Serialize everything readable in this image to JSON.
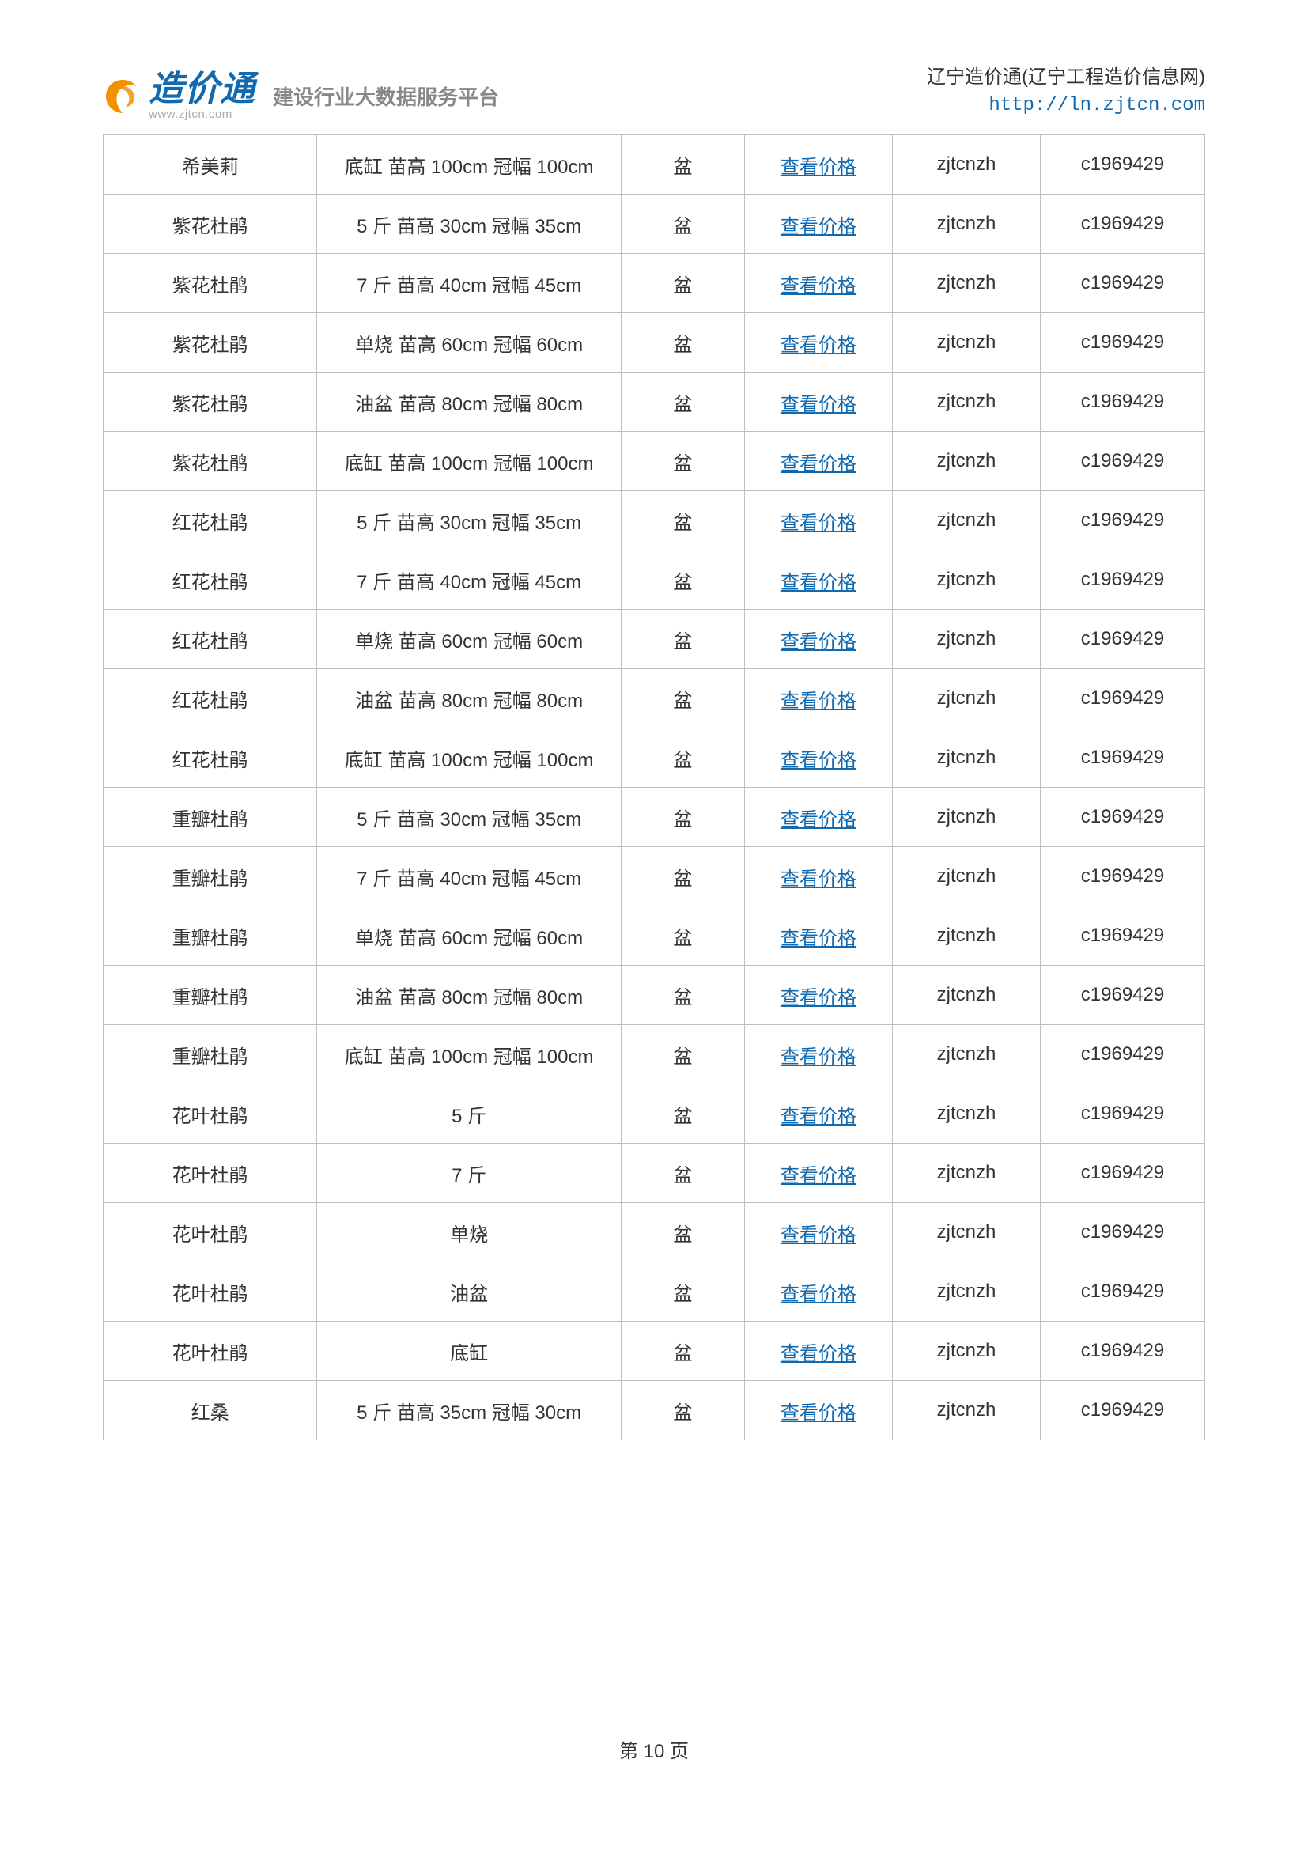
{
  "header": {
    "logo_cn": "造价通",
    "logo_url": "www.zjtcn.com",
    "tagline": "建设行业大数据服务平台",
    "site_name": "辽宁造价通(辽宁工程造价信息网)",
    "site_url": "http://ln.zjtcn.com"
  },
  "table": {
    "price_link_label": "查看价格",
    "rows": [
      {
        "name": "希美莉",
        "spec": "底缸 苗高 100cm 冠幅 100cm",
        "unit": "盆",
        "col5": "zjtcnzh",
        "col6": "c1969429"
      },
      {
        "name": "紫花杜鹃",
        "spec": "5 斤 苗高 30cm 冠幅 35cm",
        "unit": "盆",
        "col5": "zjtcnzh",
        "col6": "c1969429"
      },
      {
        "name": "紫花杜鹃",
        "spec": "7 斤 苗高 40cm 冠幅 45cm",
        "unit": "盆",
        "col5": "zjtcnzh",
        "col6": "c1969429"
      },
      {
        "name": "紫花杜鹃",
        "spec": "单烧 苗高 60cm 冠幅 60cm",
        "unit": "盆",
        "col5": "zjtcnzh",
        "col6": "c1969429"
      },
      {
        "name": "紫花杜鹃",
        "spec": "油盆 苗高 80cm 冠幅 80cm",
        "unit": "盆",
        "col5": "zjtcnzh",
        "col6": "c1969429"
      },
      {
        "name": "紫花杜鹃",
        "spec": "底缸 苗高 100cm 冠幅 100cm",
        "unit": "盆",
        "col5": "zjtcnzh",
        "col6": "c1969429"
      },
      {
        "name": "红花杜鹃",
        "spec": "5 斤 苗高 30cm 冠幅 35cm",
        "unit": "盆",
        "col5": "zjtcnzh",
        "col6": "c1969429"
      },
      {
        "name": "红花杜鹃",
        "spec": "7 斤 苗高 40cm 冠幅 45cm",
        "unit": "盆",
        "col5": "zjtcnzh",
        "col6": "c1969429"
      },
      {
        "name": "红花杜鹃",
        "spec": "单烧 苗高 60cm 冠幅 60cm",
        "unit": "盆",
        "col5": "zjtcnzh",
        "col6": "c1969429"
      },
      {
        "name": "红花杜鹃",
        "spec": "油盆 苗高 80cm 冠幅 80cm",
        "unit": "盆",
        "col5": "zjtcnzh",
        "col6": "c1969429"
      },
      {
        "name": "红花杜鹃",
        "spec": "底缸 苗高 100cm 冠幅 100cm",
        "unit": "盆",
        "col5": "zjtcnzh",
        "col6": "c1969429"
      },
      {
        "name": "重瓣杜鹃",
        "spec": "5 斤 苗高 30cm 冠幅 35cm",
        "unit": "盆",
        "col5": "zjtcnzh",
        "col6": "c1969429"
      },
      {
        "name": "重瓣杜鹃",
        "spec": "7 斤 苗高 40cm 冠幅 45cm",
        "unit": "盆",
        "col5": "zjtcnzh",
        "col6": "c1969429"
      },
      {
        "name": "重瓣杜鹃",
        "spec": "单烧 苗高 60cm 冠幅 60cm",
        "unit": "盆",
        "col5": "zjtcnzh",
        "col6": "c1969429"
      },
      {
        "name": "重瓣杜鹃",
        "spec": "油盆 苗高 80cm 冠幅 80cm",
        "unit": "盆",
        "col5": "zjtcnzh",
        "col6": "c1969429"
      },
      {
        "name": "重瓣杜鹃",
        "spec": "底缸 苗高 100cm 冠幅 100cm",
        "unit": "盆",
        "col5": "zjtcnzh",
        "col6": "c1969429"
      },
      {
        "name": "花叶杜鹃",
        "spec": "5 斤",
        "spec_center": true,
        "unit": "盆",
        "col5": "zjtcnzh",
        "col6": "c1969429"
      },
      {
        "name": "花叶杜鹃",
        "spec": "7 斤",
        "spec_center": true,
        "unit": "盆",
        "col5": "zjtcnzh",
        "col6": "c1969429"
      },
      {
        "name": "花叶杜鹃",
        "spec": "单烧",
        "spec_center": true,
        "unit": "盆",
        "col5": "zjtcnzh",
        "col6": "c1969429"
      },
      {
        "name": "花叶杜鹃",
        "spec": "油盆",
        "spec_center": true,
        "unit": "盆",
        "col5": "zjtcnzh",
        "col6": "c1969429"
      },
      {
        "name": "花叶杜鹃",
        "spec": "底缸",
        "spec_center": true,
        "unit": "盆",
        "col5": "zjtcnzh",
        "col6": "c1969429"
      },
      {
        "name": "红桑",
        "spec": "5 斤 苗高 35cm 冠幅 30cm",
        "unit": "盆",
        "col5": "zjtcnzh",
        "col6": "c1969429"
      }
    ]
  },
  "footer": {
    "page_number": "第 10 页"
  },
  "colors": {
    "link": "#1169b0",
    "border": "#bfbfbf",
    "text": "#333333",
    "logo_orange": "#f39200",
    "logo_blue": "#1169b0"
  }
}
